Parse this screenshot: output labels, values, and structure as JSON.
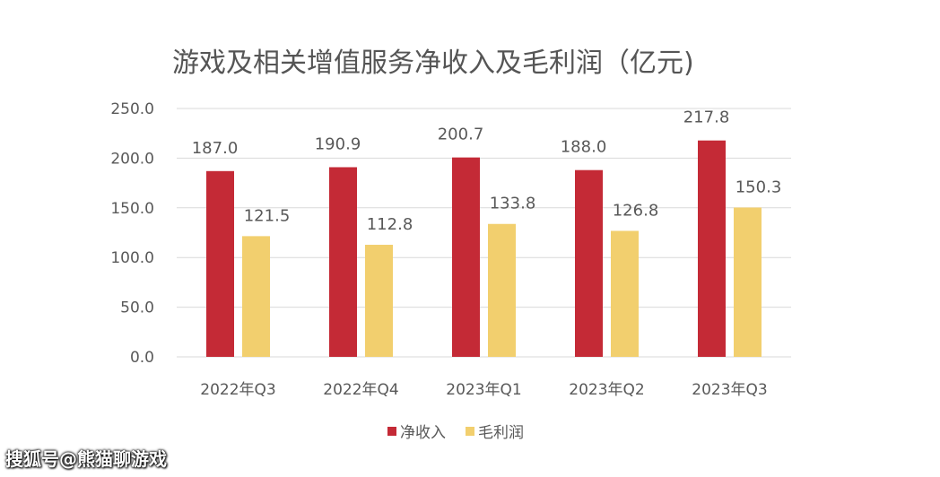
{
  "chart_data": {
    "type": "bar",
    "title": "游戏及相关增值服务净收入及毛利润（亿元)",
    "categories": [
      "2022年Q3",
      "2022年Q4",
      "2023年Q1",
      "2023年Q2",
      "2023年Q3"
    ],
    "series": [
      {
        "name": "净收入",
        "color": "#c42a36",
        "values": [
          187.0,
          190.9,
          200.7,
          188.0,
          217.8
        ]
      },
      {
        "name": "毛利润",
        "color": "#f2cf6e",
        "values": [
          121.5,
          112.8,
          133.8,
          126.8,
          150.3
        ]
      }
    ],
    "ylim": [
      0,
      250
    ],
    "yticks": [
      "0.0",
      "50.0",
      "100.0",
      "150.0",
      "200.0",
      "250.0"
    ],
    "ytick_values": [
      0,
      50,
      100,
      150,
      200,
      250
    ],
    "grid": true,
    "legend_position": "bottom-center",
    "xlabel": "",
    "ylabel": ""
  },
  "watermark": "搜狐号@熊猫聊游戏"
}
